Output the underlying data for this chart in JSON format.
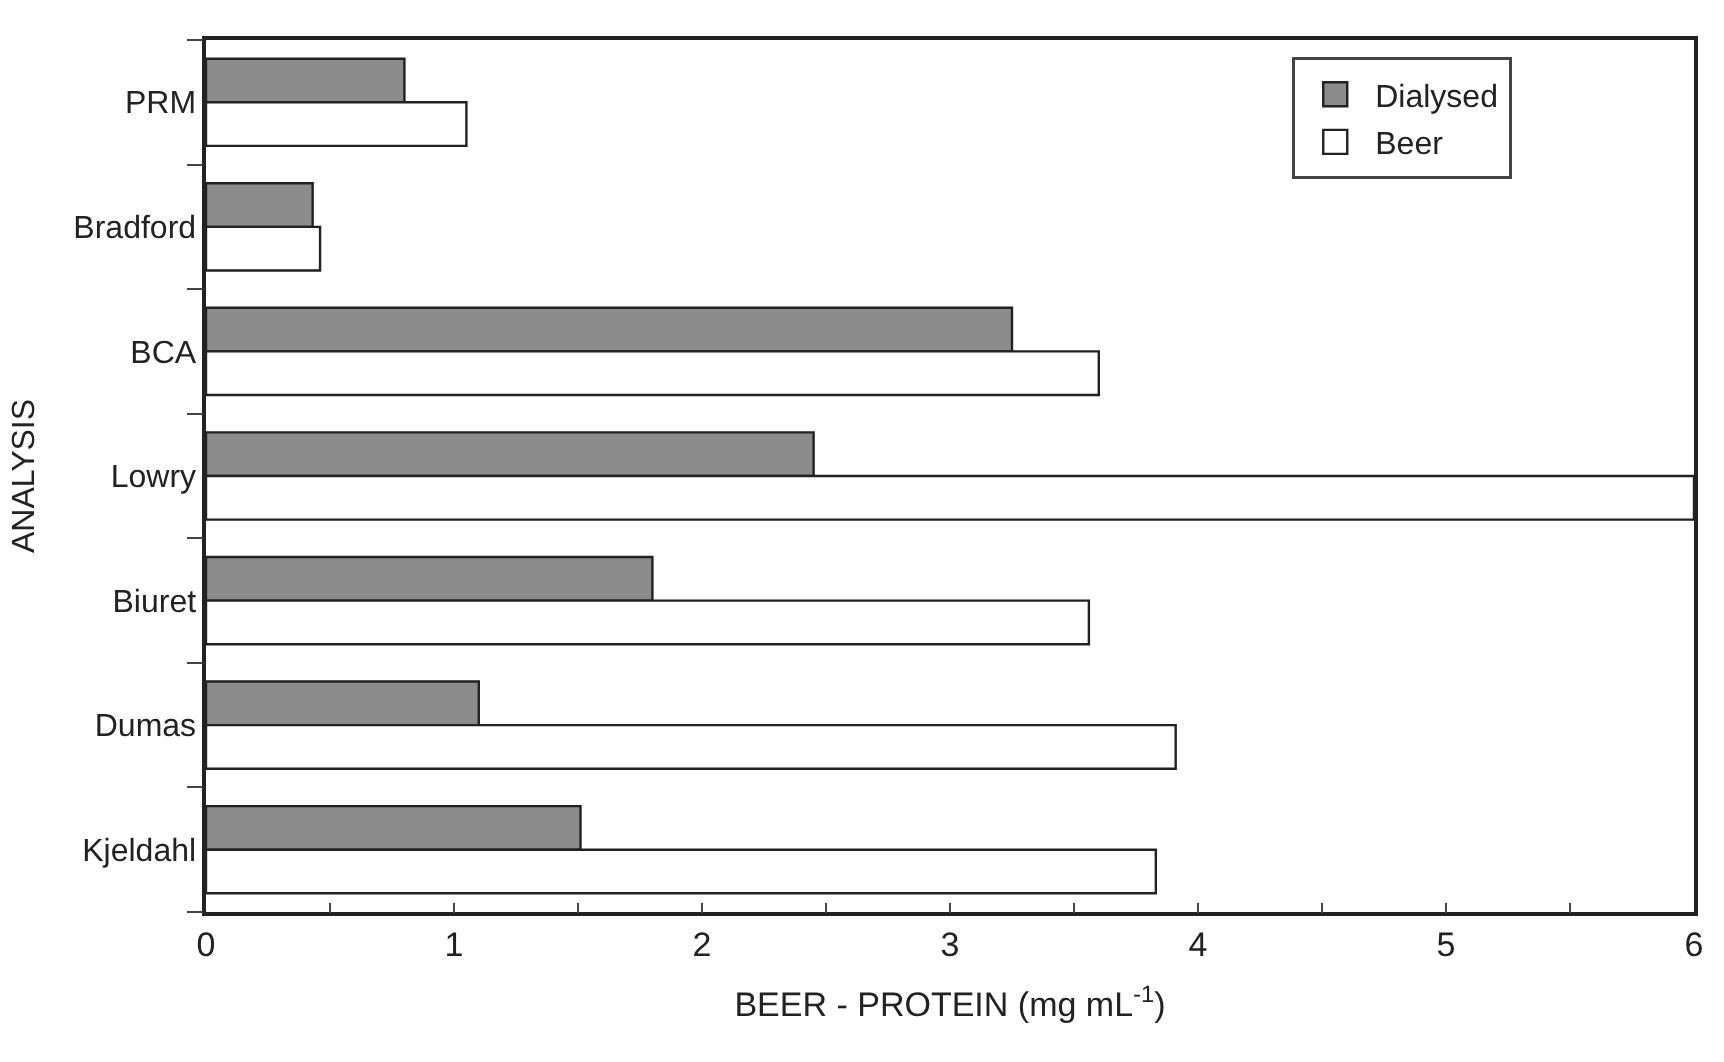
{
  "chart_data": {
    "type": "bar",
    "orientation": "horizontal",
    "xlabel": "BEER - PROTEIN (mg mL$^{-1}$)",
    "ylabel": "ANALYSIS",
    "categories": [
      "PRM",
      "Bradford",
      "BCA",
      "Lowry",
      "Biuret",
      "Dumas",
      "Kjeldahl"
    ],
    "series": [
      {
        "name": "Dialysed",
        "color": "#8c8c8c",
        "values": [
          0.8,
          0.43,
          3.25,
          2.45,
          1.8,
          1.1,
          1.51
        ]
      },
      {
        "name": "Beer",
        "color": "#ffffff",
        "values": [
          1.05,
          0.46,
          3.6,
          6,
          3.56,
          3.91,
          3.83
        ]
      }
    ],
    "xlim": [
      0,
      6
    ],
    "xticks": [
      0,
      {
        "value": 0.5,
        "label": null
      },
      1,
      {
        "value": 1.5,
        "label": null
      },
      2,
      {
        "value": 2.5,
        "label": null
      },
      3,
      {
        "value": 3.5,
        "label": null
      },
      4,
      {
        "value": 4.5,
        "label": null
      },
      5,
      {
        "value": 5.5,
        "label": null
      },
      6
    ],
    "legend": "top right"
  }
}
